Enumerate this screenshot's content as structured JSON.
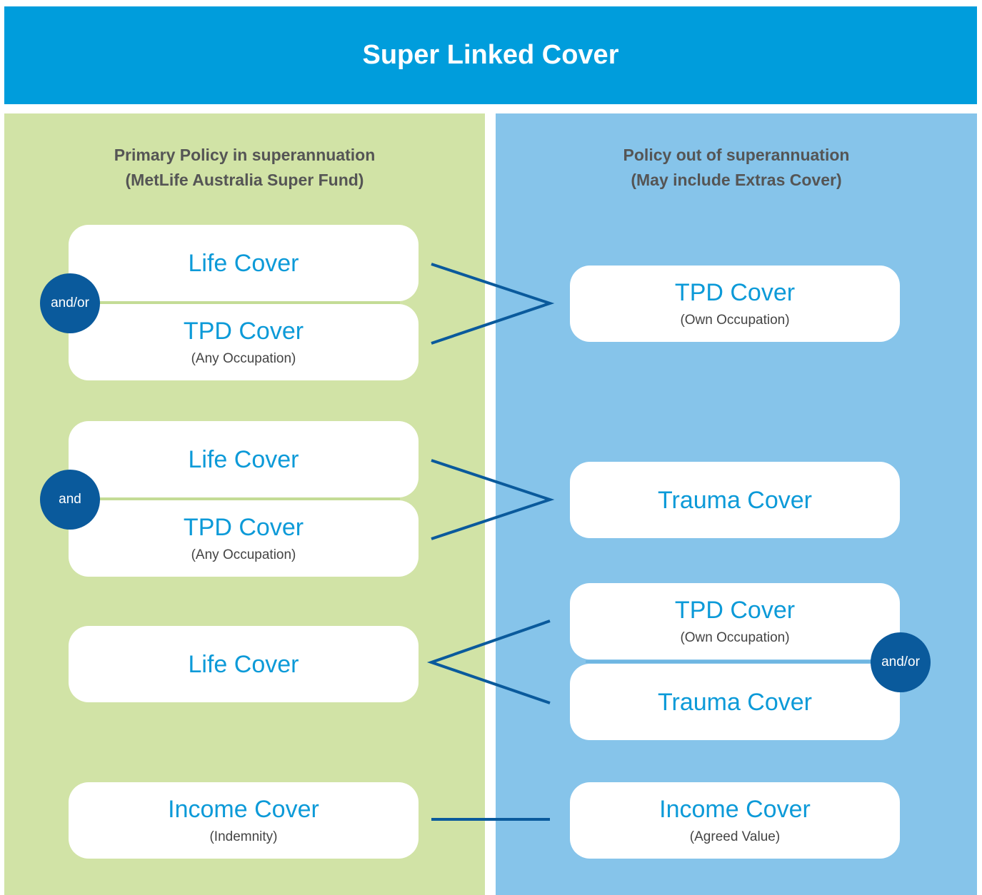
{
  "header": {
    "title": "Super Linked Cover"
  },
  "left": {
    "heading": [
      "Primary Policy in superannuation",
      "(MetLife Australia Super Fund)"
    ],
    "boxes": [
      {
        "title": "Life Cover"
      },
      {
        "title": "TPD Cover",
        "subtitle": "(Any Occupation)"
      },
      {
        "title": "Life Cover"
      },
      {
        "title": "TPD Cover",
        "subtitle": "(Any Occupation)"
      },
      {
        "title": "Life Cover"
      },
      {
        "title": "Income Cover",
        "subtitle": "(Indemnity)"
      }
    ]
  },
  "right": {
    "heading": [
      "Policy out of superannuation",
      "(May include Extras Cover)"
    ],
    "boxes": [
      {
        "title": "TPD Cover",
        "subtitle": "(Own Occupation)"
      },
      {
        "title": "Trauma Cover"
      },
      {
        "title": "TPD Cover",
        "subtitle": "(Own Occupation)"
      },
      {
        "title": "Trauma Cover"
      },
      {
        "title": "Income Cover",
        "subtitle": "(Agreed Value)"
      }
    ]
  },
  "connectors": [
    "and/or",
    "and",
    "and/or"
  ]
}
